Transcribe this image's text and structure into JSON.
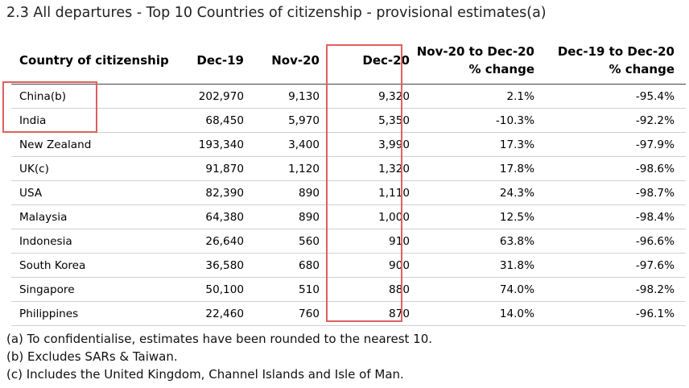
{
  "title": "2.3 All departures - Top 10 Countries of citizenship - provisional estimates(a)",
  "headers": {
    "country": "Country of citizenship",
    "dec19": "Dec-19",
    "nov20": "Nov-20",
    "dec20": "Dec-20",
    "chg1_line1": "Nov-20 to Dec-20",
    "chg1_line2": "% change",
    "chg2_line1": "Dec-19 to Dec-20",
    "chg2_line2": "% change"
  },
  "rows": [
    {
      "country": "China(b)",
      "dec19": "202,970",
      "nov20": "9,130",
      "dec20": "9,320",
      "chg1": "2.1%",
      "chg2": "-95.4%"
    },
    {
      "country": "India",
      "dec19": "68,450",
      "nov20": "5,970",
      "dec20": "5,350",
      "chg1": "-10.3%",
      "chg2": "-92.2%"
    },
    {
      "country": "New Zealand",
      "dec19": "193,340",
      "nov20": "3,400",
      "dec20": "3,990",
      "chg1": "17.3%",
      "chg2": "-97.9%"
    },
    {
      "country": "UK(c)",
      "dec19": "91,870",
      "nov20": "1,120",
      "dec20": "1,320",
      "chg1": "17.8%",
      "chg2": "-98.6%"
    },
    {
      "country": "USA",
      "dec19": "82,390",
      "nov20": "890",
      "dec20": "1,110",
      "chg1": "24.3%",
      "chg2": "-98.7%"
    },
    {
      "country": "Malaysia",
      "dec19": "64,380",
      "nov20": "890",
      "dec20": "1,000",
      "chg1": "12.5%",
      "chg2": "-98.4%"
    },
    {
      "country": "Indonesia",
      "dec19": "26,640",
      "nov20": "560",
      "dec20": "910",
      "chg1": "63.8%",
      "chg2": "-96.6%"
    },
    {
      "country": "South Korea",
      "dec19": "36,580",
      "nov20": "680",
      "dec20": "900",
      "chg1": "31.8%",
      "chg2": "-97.6%"
    },
    {
      "country": "Singapore",
      "dec19": "50,100",
      "nov20": "510",
      "dec20": "880",
      "chg1": "74.0%",
      "chg2": "-98.2%"
    },
    {
      "country": "Philippines",
      "dec19": "22,460",
      "nov20": "760",
      "dec20": "870",
      "chg1": "14.0%",
      "chg2": "-96.1%"
    }
  ],
  "notes": [
    "(a) To confidentialise, estimates have been rounded to the nearest 10.",
    "(b) Excludes SARs & Taiwan.",
    "(c) Includes the United Kingdom, Channel Islands and Isle of Man."
  ],
  "highlight_color": "#e06060"
}
